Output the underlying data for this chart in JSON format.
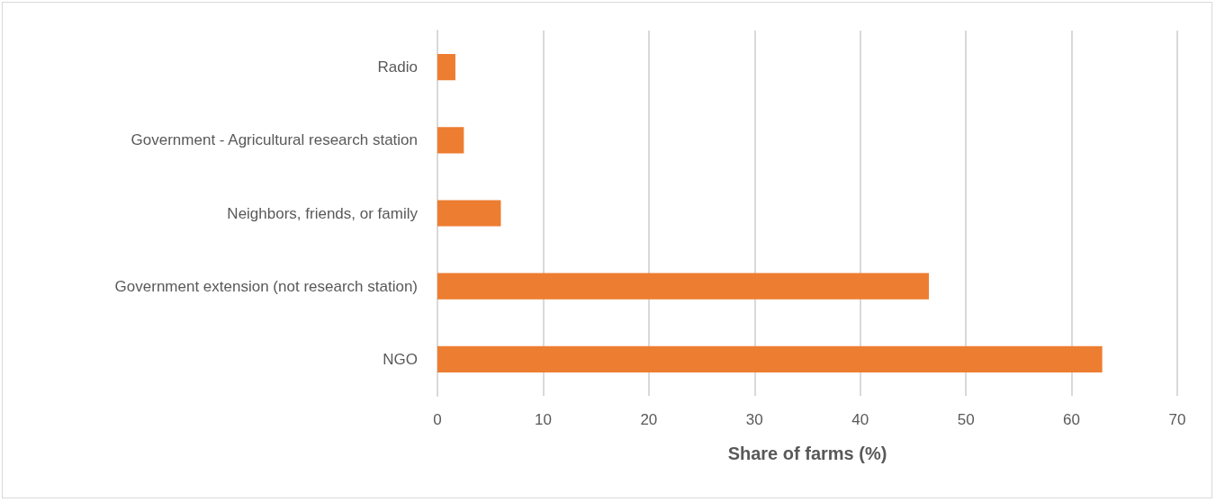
{
  "chart_data": {
    "type": "bar",
    "orientation": "horizontal",
    "xlabel": "Share of farms (%)",
    "categories": [
      "Radio",
      "Government - Agricultural research station",
      "Neighbors, friends, or family",
      "Government extension (not research station)",
      "NGO"
    ],
    "values": [
      1.7,
      2.5,
      6.0,
      46.5,
      62.9
    ],
    "color": "#ed7d31",
    "xlim": [
      0,
      70
    ],
    "xticks": [
      0,
      10,
      20,
      30,
      40,
      50,
      60,
      70
    ],
    "grid": "x"
  }
}
